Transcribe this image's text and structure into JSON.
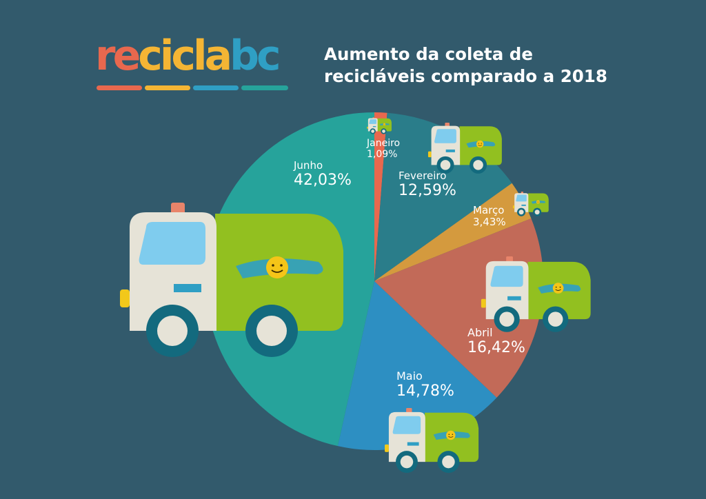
{
  "logo": {
    "text": "reciclabc",
    "colors": {
      "re": "#e8684e",
      "cicla": "#f4b534",
      "bc": "#2f9fc4",
      "bars": [
        "#e8684e",
        "#f4b534",
        "#2f9fc4",
        "#26a39b"
      ]
    }
  },
  "title_lines": [
    "Aumento da coleta de",
    "recicláveis comparado a 2018"
  ],
  "chart_data": {
    "type": "pie",
    "title": "Aumento da coleta de recicláveis comparado a 2018",
    "slices": [
      {
        "label": "Janeiro",
        "value": 1.09,
        "display": "1,09%",
        "color": "#e8684e"
      },
      {
        "label": "Fevereiro",
        "value": 12.59,
        "display": "12,59%",
        "color": "#2a7d8a"
      },
      {
        "label": "Março",
        "value": 3.43,
        "display": "3,43%",
        "color": "#d49a3e"
      },
      {
        "label": "Abril",
        "value": 16.42,
        "display": "16,42%",
        "color": "#c26a58"
      },
      {
        "label": "Maio",
        "value": 14.78,
        "display": "14,78%",
        "color": "#2d8fc2"
      },
      {
        "label": "Junho",
        "value": 42.03,
        "display": "42,03%",
        "color": "#26a39b"
      }
    ],
    "start": "top",
    "direction": "clockwise"
  },
  "truck_colors": {
    "cab": "#e6e3d7",
    "body": "#92c020",
    "window": "#7fccee",
    "wheel": "#136a7e",
    "hub": "#e6e3d7",
    "light": "#e8846a",
    "headlight": "#f2c81a",
    "sun": "#f5c518",
    "splash": "#2f9fc4"
  }
}
